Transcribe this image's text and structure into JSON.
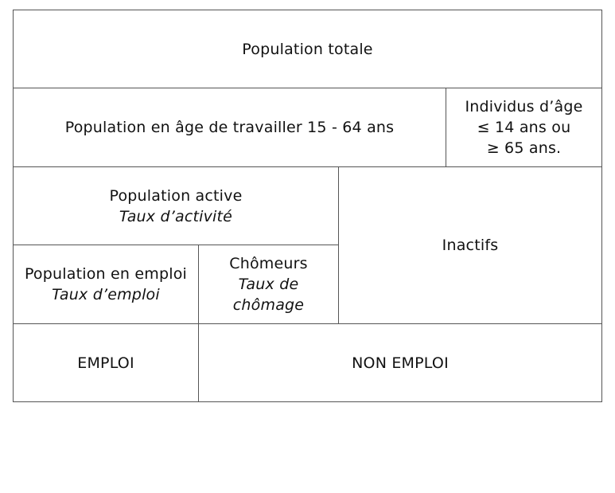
{
  "diagram": {
    "population_totale": "Population totale",
    "population_age_travailler": "Population en âge de travailler 15 - 64 ans",
    "individus_hors_age": {
      "line1": "Individus d’âge",
      "line2": "≤ 14 ans ou",
      "line3": "≥ 65 ans."
    },
    "population_active": {
      "label": "Population active",
      "taux": "Taux d’activité"
    },
    "inactifs": "Inactifs",
    "population_emploi": {
      "label": "Population en emploi",
      "taux": "Taux d’emploi"
    },
    "chomeurs": {
      "label": "Chômeurs",
      "taux_line1": "Taux de",
      "taux_line2": "chômage"
    },
    "emploi": "EMPLOI",
    "non_emploi": "NON EMPLOI"
  }
}
